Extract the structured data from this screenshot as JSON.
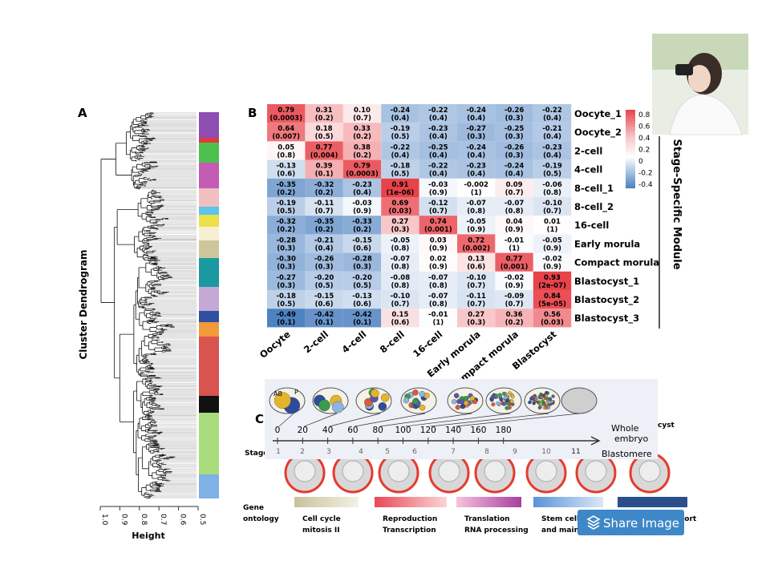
{
  "panel_labels": [
    "A",
    "B",
    "C"
  ],
  "dendrogram": {
    "y_label": "Cluster Dendrogram",
    "x_label": "Height",
    "x_ticks": [
      "1.0",
      "0.9",
      "0.8",
      "0.7",
      "0.6",
      "0.5"
    ]
  },
  "heatmap": {
    "rows": [
      "Oocyte_1",
      "Oocyte_2",
      "2-cell",
      "4-cell",
      "8-cell_1",
      "8-cell_2",
      "16-cell",
      "Early morula",
      "Compact morula",
      "Blastocyst_1",
      "Blastocyst_2",
      "Blastocyst_3"
    ],
    "columns": [
      "Oocyte",
      "2-cell",
      "4-cell",
      "8-cell",
      "16-cell",
      "Early morula",
      "Compact morula",
      "Blastocyst"
    ],
    "values": [
      [
        "0.79",
        "0.31",
        "0.10",
        "-0.24",
        "-0.22",
        "-0.24",
        "-0.26",
        "-0.22"
      ],
      [
        "0.64",
        "0.18",
        "0.33",
        "-0.19",
        "-0.23",
        "-0.27",
        "-0.25",
        "-0.21"
      ],
      [
        "0.05",
        "0.77",
        "0.38",
        "-0.22",
        "-0.25",
        "-0.24",
        "-0.26",
        "-0.23"
      ],
      [
        "-0.13",
        "0.39",
        "0.79",
        "-0.18",
        "-0.22",
        "-0.23",
        "-0.24",
        "-0.19"
      ],
      [
        "-0.35",
        "-0.32",
        "-0.23",
        "0.91",
        "-0.03",
        "-0.002",
        "0.09",
        "-0.06"
      ],
      [
        "-0.19",
        "-0.11",
        "-0.03",
        "0.69",
        "-0.12",
        "-0.07",
        "-0.07",
        "-0.10"
      ],
      [
        "-0.32",
        "-0.35",
        "-0.33",
        "0.27",
        "0.74",
        "-0.05",
        "0.04",
        "0.01"
      ],
      [
        "-0.28",
        "-0.21",
        "-0.15",
        "-0.05",
        "0.03",
        "0.72",
        "-0.01",
        "-0.05"
      ],
      [
        "-0.30",
        "-0.26",
        "-0.28",
        "-0.07",
        "0.02",
        "0.13",
        "0.77",
        "-0.02"
      ],
      [
        "-0.27",
        "-0.20",
        "-0.20",
        "-0.08",
        "-0.07",
        "-0.10",
        "-0.02",
        "0.93"
      ],
      [
        "-0.18",
        "-0.15",
        "-0.13",
        "-0.10",
        "-0.07",
        "-0.11",
        "-0.09",
        "0.84"
      ],
      [
        "-0.49",
        "-0.42",
        "-0.42",
        "0.15",
        "-0.01",
        "0.27",
        "0.36",
        "0.56"
      ]
    ],
    "p_values": [
      [
        "(0.0003)",
        "(0.2)",
        "(0.7)",
        "(0.4)",
        "(0.4)",
        "(0.4)",
        "(0.3)",
        "(0.4)"
      ],
      [
        "(0.007)",
        "(0.5)",
        "(0.2)",
        "(0.5)",
        "(0.4)",
        "(0.3)",
        "(0.3)",
        "(0.4)"
      ],
      [
        "(0.8)",
        "(0.004)",
        "(0.2)",
        "(0.4)",
        "(0.4)",
        "(0.4)",
        "(0.3)",
        "(0.4)"
      ],
      [
        "(0.6)",
        "(0.1)",
        "(0.0003)",
        "(0.5)",
        "(0.4)",
        "(0.4)",
        "(0.4)",
        "(0.5)"
      ],
      [
        "(0.2)",
        "(0.2)",
        "(0.4)",
        "(1e-06)",
        "(0.9)",
        "(1)",
        "(0.7)",
        "(0.8)"
      ],
      [
        "(0.5)",
        "(0.7)",
        "(0.9)",
        "(0.03)",
        "(0.7)",
        "(0.8)",
        "(0.8)",
        "(0.7)"
      ],
      [
        "(0.2)",
        "(0.2)",
        "(0.2)",
        "(0.3)",
        "(0.001)",
        "(0.9)",
        "(0.9)",
        "(1)"
      ],
      [
        "(0.3)",
        "(0.4)",
        "(0.6)",
        "(0.8)",
        "(0.9)",
        "(0.002)",
        "(1)",
        "(0.9)"
      ],
      [
        "(0.3)",
        "(0.3)",
        "(0.3)",
        "(0.8)",
        "(0.9)",
        "(0.6)",
        "(0.001)",
        "(0.9)"
      ],
      [
        "(0.3)",
        "(0.5)",
        "(0.5)",
        "(0.8)",
        "(0.8)",
        "(0.7)",
        "(0.9)",
        "(2e-07)"
      ],
      [
        "(0.5)",
        "(0.6)",
        "(0.6)",
        "(0.7)",
        "(0.8)",
        "(0.7)",
        "(0.7)",
        "(5e-05)"
      ],
      [
        "(0.1)",
        "(0.1)",
        "(0.1)",
        "(0.6)",
        "(1)",
        "(0.3)",
        "(0.2)",
        "(0.03)"
      ]
    ],
    "legend_ticks": [
      "0.8",
      "0.6",
      "0.4",
      "0.2",
      "0",
      "-0.2",
      "-0.4"
    ],
    "module_label": "Stage-Specific Module"
  },
  "overlay": {
    "cell_labels": [
      "AB",
      "P"
    ],
    "time_ticks": [
      "0",
      "20",
      "40",
      "60",
      "80",
      "100",
      "120",
      "140",
      "160",
      "180"
    ],
    "whole_embryo": [
      "Whole",
      "embryo"
    ],
    "blastomere": "Blastomere"
  },
  "stage": {
    "label": "Stage",
    "numbers": [
      "1",
      "2",
      "3",
      "4",
      "5",
      "6",
      "7",
      "8",
      "9",
      "10",
      "11"
    ]
  },
  "corner_text": "cyst",
  "gene_ontology": {
    "label": [
      "Gene",
      "ontology"
    ],
    "terms": [
      [
        "Cell cycle",
        "mitosis II"
      ],
      [
        "Reproduction",
        "Transcription"
      ],
      [
        "Translation",
        "RNA processing"
      ],
      [
        "Stem cell dev",
        "and mainten"
      ],
      [
        "Protein transport"
      ]
    ]
  },
  "share_button": "Share Image"
}
